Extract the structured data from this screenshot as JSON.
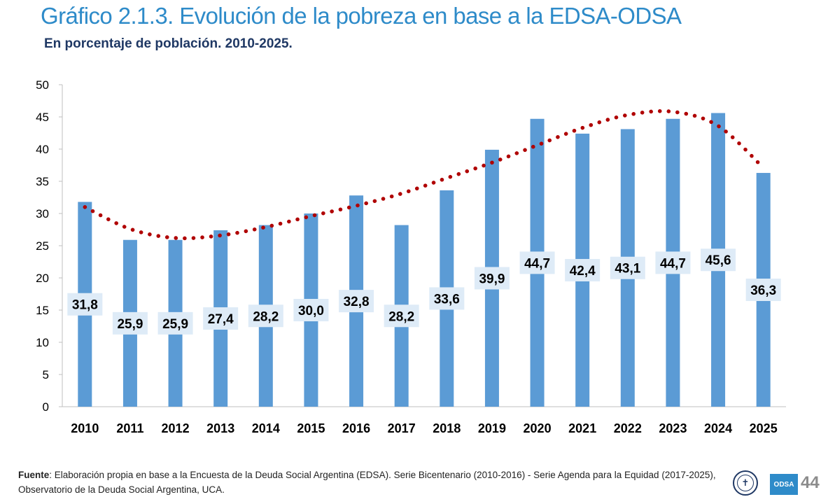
{
  "header": {
    "title": "Gráfico 2.1.3. Evolución de la pobreza en base a la EDSA-ODSA",
    "subtitle": "En porcentaje de población. 2010-2025."
  },
  "chart_data": {
    "type": "bar",
    "title": "Gráfico 2.1.3. Evolución de la pobreza en base a la EDSA-ODSA",
    "subtitle": "En porcentaje de población. 2010-2025.",
    "xlabel": "",
    "ylabel": "",
    "ylim": [
      0,
      50
    ],
    "yticks": [
      0,
      5,
      10,
      15,
      20,
      25,
      30,
      35,
      40,
      45,
      50
    ],
    "categories": [
      "2010",
      "2011",
      "2012",
      "2013",
      "2014",
      "2015",
      "2016",
      "2017",
      "2018",
      "2019",
      "2020",
      "2021",
      "2022",
      "2023",
      "2024",
      "2025"
    ],
    "values": [
      31.8,
      25.9,
      25.9,
      27.4,
      28.2,
      30.0,
      32.8,
      28.2,
      33.6,
      39.9,
      44.7,
      42.4,
      43.1,
      44.7,
      45.6,
      36.3
    ],
    "data_labels": [
      "31,8",
      "25,9",
      "25,9",
      "27,4",
      "28,2",
      "30,0",
      "32,8",
      "28,2",
      "33,6",
      "39,9",
      "44,7",
      "42,4",
      "43,1",
      "44,7",
      "45,6",
      "36,3"
    ],
    "trendline": {
      "type": "polynomial",
      "style": "dotted",
      "values": [
        31.0,
        27.6,
        26.2,
        26.6,
        27.9,
        29.6,
        31.2,
        33.1,
        35.5,
        37.9,
        40.6,
        43.3,
        45.3,
        45.8,
        43.6,
        37.1
      ]
    },
    "grid": false,
    "legend": "none",
    "colors": {
      "bar": "#5B9BD5",
      "label_box": "#DEEBF7",
      "trendline": "#B00000",
      "axis": "#BFBFBF",
      "title": "#2E8BC9",
      "subtitle": "#1F3864"
    }
  },
  "footer": {
    "source_label": "Fuente",
    "source_text": ": Elaboración propia en base a la Encuesta de la Deuda Social Argentina (EDSA). Serie Bicentenario (2010-2016) - Serie Agenda para la Equidad (2017-2025), Observatorio de la Deuda Social Argentina, UCA.",
    "logo_text": "ODSA",
    "page_number": "44",
    "seal_icon": "university-seal-icon"
  }
}
